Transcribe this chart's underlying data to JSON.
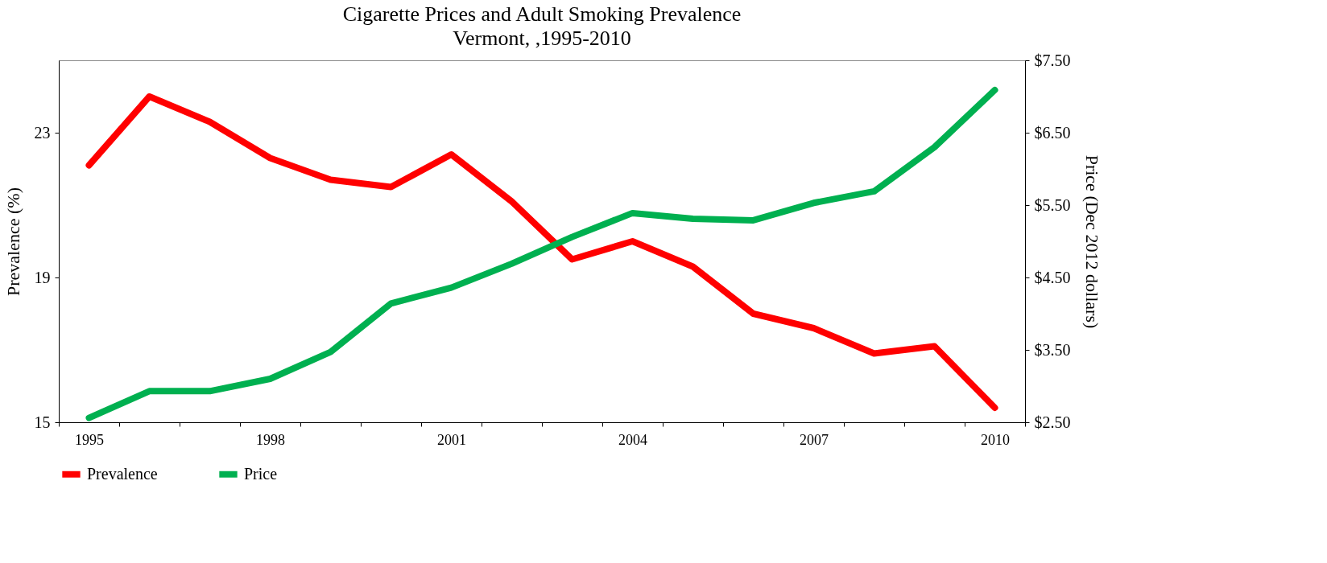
{
  "chart_data": {
    "type": "line",
    "title": "Cigarette Prices and Adult Smoking Prevalence",
    "subtitle": "Vermont, ,1995-2010",
    "ylabel": "Prevalence (%)",
    "y2label": "Price (Dec 2012  dollars)",
    "categories": [
      "1995",
      null,
      null,
      "1998",
      null,
      null,
      "2001",
      null,
      null,
      "2004",
      null,
      null,
      "2007",
      null,
      null,
      "2010"
    ],
    "series": [
      {
        "name": "Prevalence",
        "color": "#ff0000",
        "values": [
          22.1,
          24.0,
          23.3,
          22.3,
          21.7,
          21.5,
          22.4,
          21.1,
          19.5,
          20.0,
          19.3,
          18.0,
          17.6,
          16.9,
          17.1,
          15.4
        ]
      },
      {
        "name": "Price",
        "color": "#00b050",
        "axis": "y2",
        "values": [
          2.56,
          2.93,
          2.93,
          3.1,
          3.47,
          4.14,
          4.36,
          4.69,
          5.06,
          5.39,
          5.31,
          5.29,
          5.53,
          5.69,
          6.3,
          7.09
        ]
      }
    ],
    "ylim": [
      15,
      25
    ],
    "yticks": [
      15,
      19,
      23
    ],
    "y2lim": [
      2.5,
      7.5
    ],
    "y2ticks": [
      {
        "value": 2.5,
        "label": "$2.50"
      },
      {
        "value": 3.5,
        "label": "$3.50"
      },
      {
        "value": 4.5,
        "label": "$4.50"
      },
      {
        "value": 5.5,
        "label": "$5.50"
      },
      {
        "value": 6.5,
        "label": "$6.50"
      },
      {
        "value": 7.5,
        "label": "$7.50"
      }
    ],
    "grid": false,
    "legend": "bottom",
    "marker": "none",
    "line_style": "solid"
  }
}
